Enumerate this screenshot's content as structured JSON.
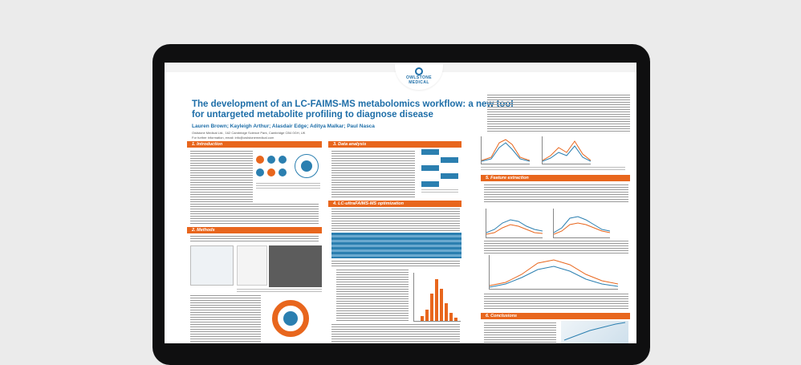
{
  "poster": {
    "logo_line1": "OWLSTONE",
    "logo_line2": "MEDICAL",
    "title": "The development of an LC-FAIMS-MS metabolomics workflow: a new tool for untargeted metabolite profiling to diagnose disease",
    "authors": "Lauren Brown; Kayleigh Arthur; Alasdair Edge; Aditya Malkar; Paul Nasca",
    "affiliation": "Owlstone Medical Ltd., 162 Cambridge Science Park, Cambridge CB4 0GH, UK",
    "email": "For further information, email: info@owlstonemedical.com"
  },
  "sections": {
    "introduction": "1.   Introduction",
    "methods": "2.   Methods",
    "data_analysis": "3.   Data analysis",
    "optimization": "4.   LC-ultraFAIMS-MS optimization",
    "feature_extraction": "5.   Feature extraction",
    "conclusions": "6.   Conclusions"
  },
  "colors": {
    "accent": "#e8661d",
    "title_blue": "#1e6ea8",
    "monitor_bezel": "#0f0f10",
    "background": "#ebebeb"
  }
}
